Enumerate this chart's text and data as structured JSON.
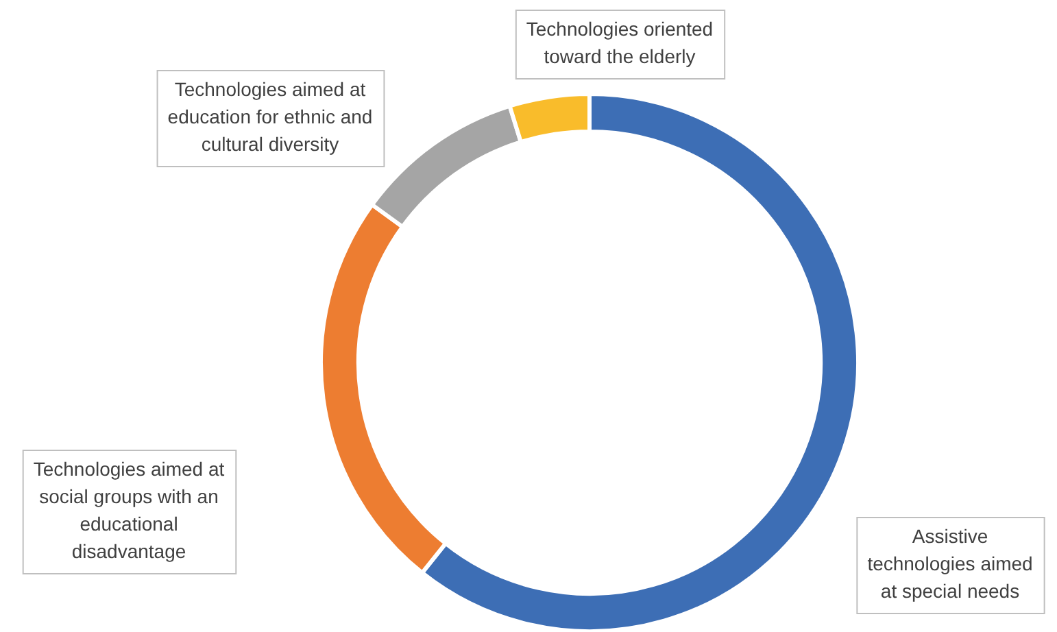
{
  "chart_data": {
    "type": "donut",
    "categories": [
      "Assistive technologies aimed at special needs",
      "Technologies aimed at social groups with an educational disadvantage",
      "Technologies aimed at education for ethnic and cultural diversity",
      "Technologies oriented toward the elderly"
    ],
    "values": [
      60.7,
      24.3,
      10.2,
      4.8
    ],
    "colors": [
      "#3d6eb5",
      "#ed7d31",
      "#a5a5a5",
      "#f9bc2b"
    ]
  }
}
